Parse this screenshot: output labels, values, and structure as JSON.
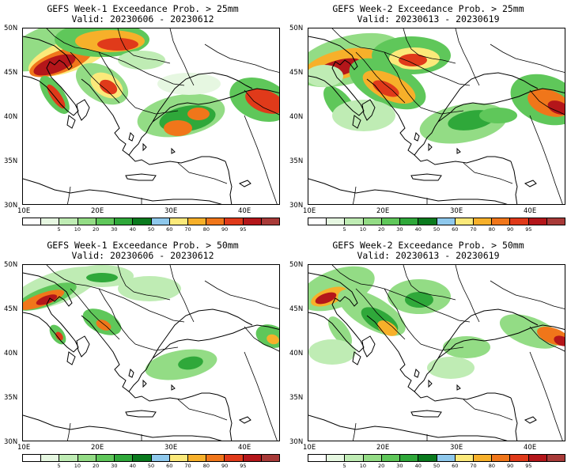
{
  "panels": [
    {
      "title": "GEFS Week-1 Exceedance Prob. > 25mm",
      "valid": "Valid: 20230606 - 20230612"
    },
    {
      "title": "GEFS Week-2 Exceedance Prob. > 25mm",
      "valid": "Valid: 20230613 - 20230619"
    },
    {
      "title": "GEFS Week-1 Exceedance Prob. > 50mm",
      "valid": "Valid: 20230606 - 20230612"
    },
    {
      "title": "GEFS Week-2 Exceedance Prob. > 50mm",
      "valid": "Valid: 20230613 - 20230619"
    }
  ],
  "lat_labels": [
    "50N",
    "45N",
    "40N",
    "35N",
    "30N"
  ],
  "lon_labels": [
    "10E",
    "20E",
    "30E",
    "40E"
  ],
  "colorbar": {
    "ticks": [
      "5",
      "10",
      "20",
      "30",
      "40",
      "50",
      "60",
      "70",
      "80",
      "90",
      "95"
    ],
    "colors": [
      "#ffffff",
      "#e6f7e1",
      "#bfecb4",
      "#93dc85",
      "#5fc75a",
      "#2fa83a",
      "#0a7a1e",
      "#8ec8ec",
      "#fbe97a",
      "#f7b02a",
      "#f0761a",
      "#e03a1a",
      "#b4161a",
      "#a83a38"
    ]
  }
}
